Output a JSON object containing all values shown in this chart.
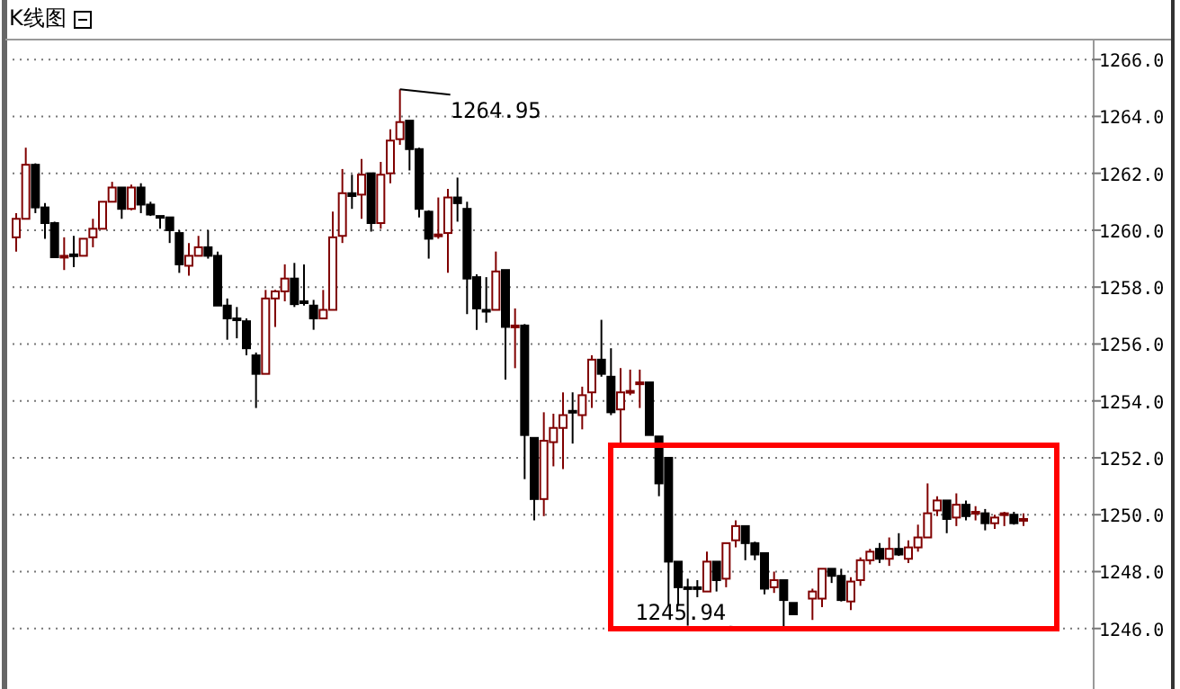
{
  "chart_data": {
    "type": "candlestick",
    "title": "K线图",
    "categories": [
      null,
      null,
      null,
      null,
      null,
      null,
      null,
      null,
      null,
      null,
      null,
      null,
      null,
      null,
      null,
      null,
      null,
      null,
      null,
      null,
      null,
      null,
      null,
      null,
      null,
      null,
      null,
      null,
      null,
      null,
      null,
      null,
      null,
      null,
      null,
      null,
      null,
      null,
      null,
      null,
      null,
      null,
      null,
      null,
      null,
      null,
      null,
      null,
      null,
      null,
      null,
      null,
      null,
      null,
      null,
      null,
      null,
      null,
      null,
      null,
      null,
      null,
      null,
      null,
      null,
      null,
      null,
      null,
      null,
      null,
      null,
      null,
      null,
      null,
      null,
      null,
      null,
      null,
      null,
      null,
      null,
      null,
      null,
      null,
      null,
      null,
      null,
      null,
      null,
      null,
      null,
      null,
      null,
      null,
      null,
      null,
      null,
      null,
      null,
      null,
      null,
      null,
      null,
      null,
      null,
      null
    ],
    "ohlc": [
      [
        1259.75,
        1260.6,
        1259.25,
        1260.4
      ],
      [
        1260.4,
        1262.9,
        1260.4,
        1262.3
      ],
      [
        1262.3,
        1262.35,
        1260.6,
        1260.8
      ],
      [
        1260.8,
        1260.95,
        1259.7,
        1260.25
      ],
      [
        1260.25,
        1260.3,
        1259.05,
        1259.05
      ],
      [
        1259.05,
        1259.75,
        1258.6,
        1259.1
      ],
      [
        1259.15,
        1259.8,
        1258.7,
        1259.1
      ],
      [
        1259.1,
        1259.7,
        1259.1,
        1259.7
      ],
      [
        1259.75,
        1260.4,
        1259.4,
        1260.05
      ],
      [
        1260.05,
        1261.0,
        1260.05,
        1261.0
      ],
      [
        1261.0,
        1261.7,
        1261.0,
        1261.5
      ],
      [
        1261.5,
        1261.5,
        1260.4,
        1260.75
      ],
      [
        1260.75,
        1261.6,
        1260.7,
        1261.5
      ],
      [
        1261.5,
        1261.65,
        1260.6,
        1260.9
      ],
      [
        1260.9,
        1261.0,
        1260.5,
        1260.55
      ],
      [
        1260.5,
        1260.5,
        1260.05,
        1260.45
      ],
      [
        1260.45,
        1260.45,
        1259.55,
        1260.0
      ],
      [
        1259.9,
        1260.0,
        1258.5,
        1258.8
      ],
      [
        1258.75,
        1259.55,
        1258.4,
        1259.1
      ],
      [
        1259.1,
        1259.8,
        1259.1,
        1259.4
      ],
      [
        1259.4,
        1260.0,
        1259.0,
        1259.1
      ],
      [
        1259.1,
        1259.25,
        1257.35,
        1257.35
      ],
      [
        1257.35,
        1257.6,
        1256.15,
        1256.9
      ],
      [
        1256.9,
        1257.3,
        1256.2,
        1256.85
      ],
      [
        1256.8,
        1256.9,
        1255.6,
        1255.85
      ],
      [
        1255.6,
        1255.7,
        1253.75,
        1254.95
      ],
      [
        1254.95,
        1257.9,
        1254.95,
        1257.6
      ],
      [
        1257.6,
        1257.9,
        1256.6,
        1257.85
      ],
      [
        1257.85,
        1258.8,
        1257.5,
        1258.3
      ],
      [
        1258.3,
        1258.85,
        1257.3,
        1257.4
      ],
      [
        1257.5,
        1258.8,
        1257.35,
        1257.45
      ],
      [
        1257.35,
        1257.55,
        1256.5,
        1256.9
      ],
      [
        1256.9,
        1257.9,
        1256.9,
        1257.2
      ],
      [
        1257.2,
        1260.65,
        1257.2,
        1259.75
      ],
      [
        1259.8,
        1262.15,
        1259.55,
        1261.3
      ],
      [
        1261.3,
        1261.95,
        1260.75,
        1261.2
      ],
      [
        1261.25,
        1262.5,
        1260.4,
        1261.95
      ],
      [
        1262.0,
        1262.0,
        1259.95,
        1260.25
      ],
      [
        1260.25,
        1262.4,
        1260.05,
        1261.95
      ],
      [
        1262.0,
        1263.55,
        1261.65,
        1263.15
      ],
      [
        1263.2,
        1264.95,
        1263.0,
        1263.8
      ],
      [
        1263.85,
        1263.85,
        1262.1,
        1262.85
      ],
      [
        1262.85,
        1262.9,
        1260.45,
        1260.75
      ],
      [
        1260.65,
        1260.7,
        1259.0,
        1259.7
      ],
      [
        1259.8,
        1261.15,
        1259.7,
        1259.85
      ],
      [
        1259.9,
        1261.45,
        1258.5,
        1261.15
      ],
      [
        1261.15,
        1261.85,
        1260.3,
        1260.95
      ],
      [
        1260.75,
        1261.0,
        1257.05,
        1258.3
      ],
      [
        1258.35,
        1258.45,
        1256.5,
        1257.25
      ],
      [
        1257.2,
        1258.35,
        1256.75,
        1257.15
      ],
      [
        1257.2,
        1259.25,
        1257.2,
        1258.55
      ],
      [
        1258.6,
        1258.6,
        1254.75,
        1256.6
      ],
      [
        1256.6,
        1257.25,
        1255.15,
        1256.65
      ],
      [
        1256.65,
        1256.7,
        1251.25,
        1252.8
      ],
      [
        1252.7,
        1252.7,
        1249.8,
        1250.55
      ],
      [
        1250.55,
        1253.6,
        1249.95,
        1252.6
      ],
      [
        1252.55,
        1253.55,
        1251.7,
        1253.05
      ],
      [
        1253.05,
        1254.3,
        1251.6,
        1253.5
      ],
      [
        1253.65,
        1254.3,
        1252.5,
        1253.6
      ],
      [
        1253.5,
        1254.5,
        1253.0,
        1254.2
      ],
      [
        1254.3,
        1255.6,
        1253.75,
        1255.45
      ],
      [
        1255.45,
        1256.85,
        1254.85,
        1254.95
      ],
      [
        1254.85,
        1255.85,
        1253.5,
        1253.6
      ],
      [
        1253.7,
        1255.15,
        1252.5,
        1254.3
      ],
      [
        1254.3,
        1255.1,
        1254.2,
        1254.35
      ],
      [
        1254.6,
        1255.1,
        1253.75,
        1254.65
      ],
      [
        1254.65,
        1254.65,
        1252.8,
        1252.8
      ],
      [
        1252.75,
        1252.75,
        1250.65,
        1251.1
      ],
      [
        1252.0,
        1252.0,
        1246.8,
        1248.35
      ],
      [
        1248.35,
        1248.35,
        1246.8,
        1247.45
      ],
      [
        1247.45,
        1247.75,
        1246.1,
        1247.4
      ],
      [
        1247.45,
        1247.7,
        1247.1,
        1247.4
      ],
      [
        1247.3,
        1248.7,
        1247.3,
        1248.35
      ],
      [
        1248.35,
        1248.35,
        1247.3,
        1247.7
      ],
      [
        1247.75,
        1249.0,
        1247.45,
        1249.0
      ],
      [
        1249.1,
        1249.8,
        1248.85,
        1249.6
      ],
      [
        1249.6,
        1249.6,
        1248.4,
        1249.0
      ],
      [
        1249.0,
        1249.05,
        1248.4,
        1248.6
      ],
      [
        1248.65,
        1248.65,
        1247.2,
        1247.4
      ],
      [
        1247.45,
        1248.0,
        1247.25,
        1247.7
      ],
      [
        1247.7,
        1247.7,
        1245.94,
        1247.0
      ],
      [
        1246.9,
        1246.9,
        1246.5,
        1246.5
      ],
      null,
      [
        1247.05,
        1247.4,
        1246.3,
        1247.3
      ],
      [
        1247.05,
        1248.1,
        1246.75,
        1248.1
      ],
      [
        1248.1,
        1248.1,
        1247.6,
        1247.85
      ],
      [
        1247.85,
        1248.1,
        1246.95,
        1247.0
      ],
      [
        1246.95,
        1247.8,
        1246.65,
        1247.65
      ],
      [
        1247.7,
        1248.5,
        1247.5,
        1248.4
      ],
      [
        1248.4,
        1248.8,
        1248.25,
        1248.7
      ],
      [
        1248.8,
        1249.0,
        1248.3,
        1248.45
      ],
      [
        1248.45,
        1249.2,
        1248.2,
        1248.8
      ],
      [
        1248.8,
        1249.35,
        1248.55,
        1248.6
      ],
      [
        1248.45,
        1249.1,
        1248.3,
        1248.85
      ],
      [
        1248.85,
        1249.65,
        1248.7,
        1249.2
      ],
      [
        1249.2,
        1251.1,
        1249.2,
        1250.05
      ],
      [
        1250.15,
        1250.65,
        1249.95,
        1250.5
      ],
      [
        1250.5,
        1250.5,
        1249.35,
        1249.85
      ],
      [
        1249.9,
        1250.75,
        1249.6,
        1250.35
      ],
      [
        1250.35,
        1250.5,
        1249.8,
        1249.95
      ],
      [
        1250.05,
        1250.3,
        1249.8,
        1250.1
      ],
      [
        1250.05,
        1250.2,
        1249.45,
        1249.7
      ],
      [
        1249.7,
        1250.0,
        1249.5,
        1249.9
      ],
      [
        1250.0,
        1250.1,
        1249.6,
        1250.05
      ],
      [
        1250.0,
        1250.1,
        1249.65,
        1249.7
      ],
      [
        1249.8,
        1250.05,
        1249.6,
        1249.85
      ]
    ],
    "colors": [
      "#800000",
      "#800000",
      "#000000",
      "#000000",
      "#000000",
      "#800000",
      "#000000",
      "#800000",
      "#800000",
      "#800000",
      "#800000",
      "#000000",
      "#800000",
      "#000000",
      "#000000",
      "#000000",
      "#000000",
      "#000000",
      "#800000",
      "#800000",
      "#000000",
      "#000000",
      "#000000",
      "#000000",
      "#000000",
      "#000000",
      "#800000",
      "#800000",
      "#800000",
      "#000000",
      "#000000",
      "#000000",
      "#800000",
      "#800000",
      "#800000",
      "#000000",
      "#800000",
      "#000000",
      "#800000",
      "#800000",
      "#800000",
      "#000000",
      "#000000",
      "#000000",
      "#800000",
      "#800000",
      "#000000",
      "#000000",
      "#000000",
      "#000000",
      "#800000",
      "#000000",
      "#800000",
      "#000000",
      "#000000",
      "#800000",
      "#800000",
      "#800000",
      "#000000",
      "#800000",
      "#800000",
      "#000000",
      "#000000",
      "#800000",
      "#800000",
      "#800000",
      "#000000",
      "#000000",
      "#000000",
      "#000000",
      "#000000",
      "#000000",
      "#800000",
      "#000000",
      "#800000",
      "#800000",
      "#000000",
      "#000000",
      "#000000",
      "#800000",
      "#000000",
      "#000000",
      null,
      "#800000",
      "#800000",
      "#000000",
      "#000000",
      "#800000",
      "#800000",
      "#800000",
      "#000000",
      "#800000",
      "#000000",
      "#800000",
      "#800000",
      "#800000",
      "#800000",
      "#000000",
      "#800000",
      "#000000",
      "#800000",
      "#000000",
      "#800000",
      "#800000",
      "#000000",
      "#800000"
    ],
    "ylim": [
      1244,
      1266.7
    ],
    "yticks": [
      {
        "value": 1246,
        "label": "1246.0"
      },
      {
        "value": 1248,
        "label": "1248.0"
      },
      {
        "value": 1250,
        "label": "1250.0"
      },
      {
        "value": 1252,
        "label": "1252.0"
      },
      {
        "value": 1254,
        "label": "1254.0"
      },
      {
        "value": 1256,
        "label": "1256.0"
      },
      {
        "value": 1258,
        "label": "1258.0"
      },
      {
        "value": 1260,
        "label": "1260.0"
      },
      {
        "value": 1262,
        "label": "1262.0"
      },
      {
        "value": 1264,
        "label": "1264.0"
      },
      {
        "value": 1266,
        "label": "1266.0"
      }
    ],
    "grid": "y",
    "annotations": [
      "1264.95",
      "1245.94"
    ]
  }
}
